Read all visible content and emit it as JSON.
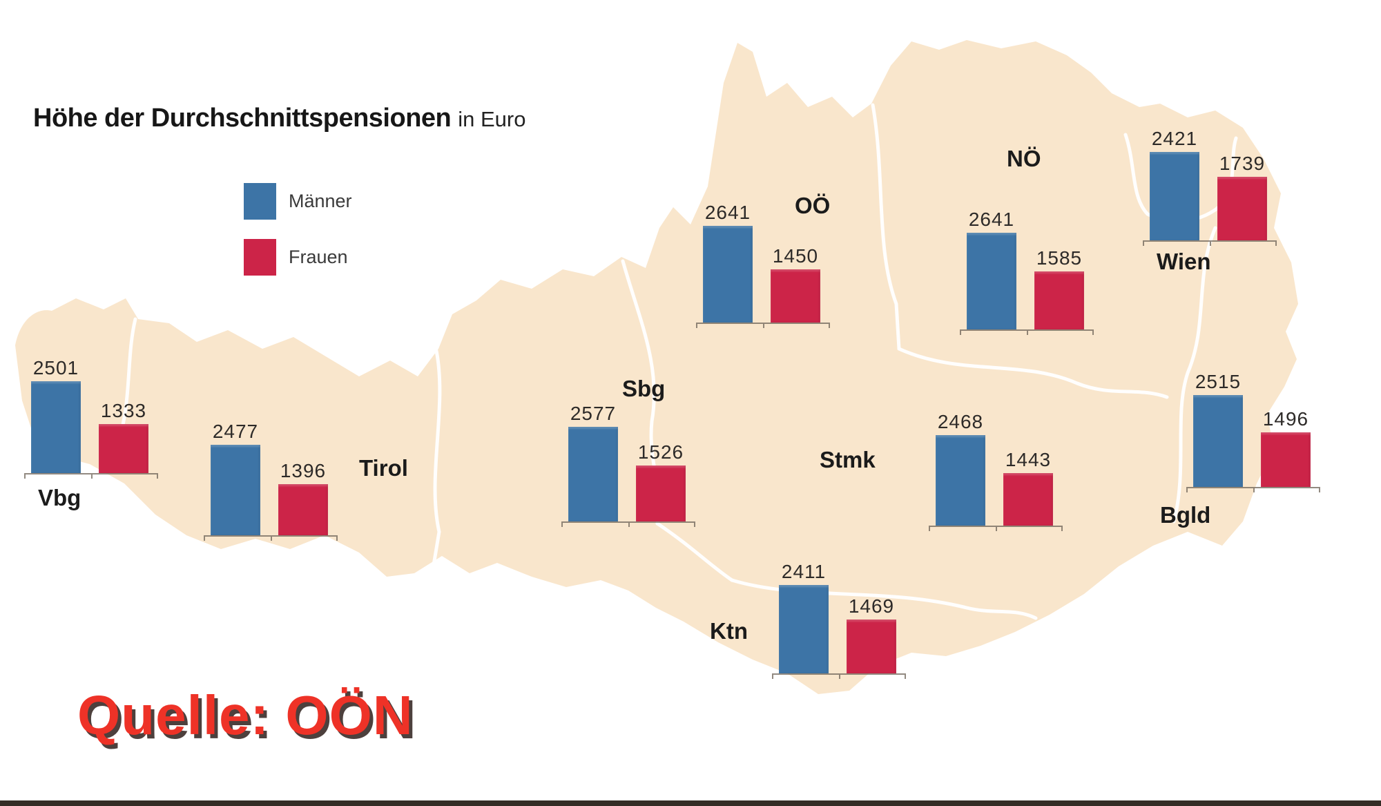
{
  "title": {
    "main": "Höhe der Durchschnittspensionen",
    "suffix": "in Euro"
  },
  "legend": {
    "maenner_label": "Männer",
    "frauen_label": "Frauen"
  },
  "source": {
    "label": "Quelle: OÖN"
  },
  "colors": {
    "maenner": "#3d74a6",
    "frauen": "#cc2448",
    "map_fill": "#f9e6cc",
    "source_red": "#ee3227",
    "footer_bar": "#342d26"
  },
  "chart_data": {
    "type": "bar",
    "title": "Höhe der Durchschnittspensionen",
    "unit": "Euro",
    "legend_position": "top-left",
    "series_names": [
      "Männer",
      "Frauen"
    ],
    "regions": [
      {
        "id": "vbg",
        "label": "Vbg",
        "maenner": 2501,
        "frauen": 1333
      },
      {
        "id": "tirol",
        "label": "Tirol",
        "maenner": 2477,
        "frauen": 1396
      },
      {
        "id": "sbg",
        "label": "Sbg",
        "maenner": 2577,
        "frauen": 1526
      },
      {
        "id": "ooe",
        "label": "OÖ",
        "maenner": 2641,
        "frauen": 1450
      },
      {
        "id": "noe",
        "label": "NÖ",
        "maenner": 2641,
        "frauen": 1585
      },
      {
        "id": "wien",
        "label": "Wien",
        "maenner": 2421,
        "frauen": 1739
      },
      {
        "id": "stmk",
        "label": "Stmk",
        "maenner": 2468,
        "frauen": 1443
      },
      {
        "id": "ktn",
        "label": "Ktn",
        "maenner": 2411,
        "frauen": 1469
      },
      {
        "id": "bgld",
        "label": "Bgld",
        "maenner": 2515,
        "frauen": 1496
      }
    ]
  }
}
